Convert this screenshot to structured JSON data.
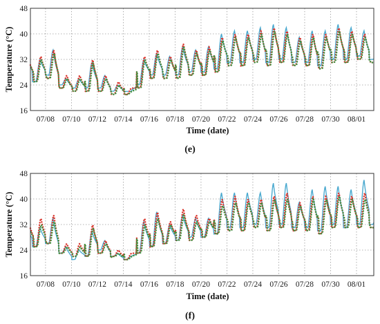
{
  "chart_data": [
    {
      "type": "line",
      "panel_label": "(e)",
      "xlabel": "Time (date)",
      "ylabel": "Temperature (°C)",
      "ylim": [
        16,
        48
      ],
      "yticks": [
        16,
        24,
        32,
        40,
        48
      ],
      "xlim": [
        "07/06 20:00",
        "08/02 08:00"
      ],
      "xticks": [
        "07/08",
        "07/10",
        "07/12",
        "07/14",
        "07/16",
        "07/18",
        "07/20",
        "07/22",
        "07/24",
        "07/26",
        "07/28",
        "07/30",
        "08/01"
      ],
      "grid": true,
      "x_daily": [
        "07/07",
        "07/08",
        "07/09",
        "07/10",
        "07/11",
        "07/12",
        "07/13",
        "07/14",
        "07/15",
        "07/16",
        "07/17",
        "07/18",
        "07/19",
        "07/20",
        "07/21",
        "07/22",
        "07/23",
        "07/24",
        "07/25",
        "07/26",
        "07/27",
        "07/28",
        "07/29",
        "07/30",
        "07/31",
        "08/01",
        "08/02"
      ],
      "series": [
        {
          "color": "#4aa9cf",
          "style": "solid",
          "daily_max": [
            32,
            35,
            26,
            26,
            31,
            27,
            24,
            22,
            32,
            34,
            33,
            36,
            35,
            36,
            40,
            41,
            41,
            42,
            43,
            42,
            39,
            41,
            41,
            43,
            42,
            41,
            33
          ],
          "daily_min": [
            25,
            27,
            24,
            23,
            23,
            23,
            22,
            22,
            24,
            27,
            27,
            27,
            28,
            28,
            29,
            31,
            31,
            32,
            31,
            32,
            31,
            31,
            30,
            32,
            32,
            33,
            32
          ]
        },
        {
          "color": "#d9342b",
          "style": "dotted",
          "daily_max": [
            33,
            35,
            27,
            27,
            32,
            27,
            25,
            23,
            33,
            35,
            33,
            37,
            35,
            36,
            39,
            40,
            40,
            41,
            42,
            41,
            39,
            40,
            40,
            42,
            41,
            40,
            33
          ],
          "daily_min": [
            25,
            26,
            23,
            22,
            22,
            22,
            21,
            21,
            23,
            26,
            26,
            26,
            27,
            27,
            28,
            30,
            30,
            31,
            30,
            31,
            30,
            30,
            29,
            31,
            31,
            32,
            31
          ]
        },
        {
          "color": "#3f8f3f",
          "style": "dotted",
          "daily_max": [
            32,
            34,
            26,
            26,
            31,
            26,
            24,
            22,
            32,
            34,
            32,
            36,
            34,
            35,
            38,
            39,
            39,
            40,
            41,
            40,
            38,
            39,
            39,
            41,
            40,
            39,
            32
          ],
          "daily_min": [
            25,
            26,
            23,
            22,
            22,
            22,
            21,
            21,
            23,
            26,
            26,
            26,
            27,
            27,
            28,
            30,
            30,
            31,
            30,
            31,
            30,
            30,
            29,
            31,
            31,
            32,
            31
          ]
        }
      ]
    },
    {
      "type": "line",
      "panel_label": "(f)",
      "xlabel": "Time (date)",
      "ylabel": "Temperature (°C)",
      "ylim": [
        16,
        48
      ],
      "yticks": [
        16,
        24,
        32,
        40,
        48
      ],
      "xlim": [
        "07/06 20:00",
        "08/02 08:00"
      ],
      "xticks": [
        "07/08",
        "07/10",
        "07/12",
        "07/14",
        "07/16",
        "07/18",
        "07/20",
        "07/22",
        "07/24",
        "07/26",
        "07/28",
        "07/30",
        "08/01"
      ],
      "grid": true,
      "x_daily": [
        "07/07",
        "07/08",
        "07/09",
        "07/10",
        "07/11",
        "07/12",
        "07/13",
        "07/14",
        "07/15",
        "07/16",
        "07/17",
        "07/18",
        "07/19",
        "07/20",
        "07/21",
        "07/22",
        "07/23",
        "07/24",
        "07/25",
        "07/26",
        "07/27",
        "07/28",
        "07/29",
        "07/30",
        "07/31",
        "08/01",
        "08/02"
      ],
      "series": [
        {
          "color": "#4aa9cf",
          "style": "solid",
          "daily_max": [
            31,
            34,
            25,
            24,
            30,
            27,
            23,
            22,
            33,
            36,
            32,
            35,
            34,
            34,
            42,
            42,
            42,
            42,
            45,
            45,
            39,
            43,
            44,
            44,
            43,
            46,
            35
          ],
          "daily_min": [
            25,
            26,
            23,
            21,
            22,
            24,
            22,
            21,
            23,
            25,
            26,
            27,
            28,
            28,
            29,
            31,
            31,
            32,
            31,
            32,
            31,
            31,
            30,
            32,
            31,
            32,
            32
          ]
        },
        {
          "color": "#d9342b",
          "style": "dotted",
          "daily_max": [
            34,
            35,
            26,
            26,
            32,
            27,
            24,
            23,
            34,
            36,
            33,
            37,
            35,
            34,
            40,
            41,
            40,
            40,
            41,
            42,
            39,
            41,
            41,
            42,
            41,
            42,
            34
          ],
          "daily_min": [
            25,
            26,
            23,
            22,
            22,
            23,
            22,
            21,
            23,
            25,
            26,
            27,
            27,
            28,
            29,
            30,
            30,
            31,
            30,
            31,
            30,
            30,
            29,
            31,
            31,
            31,
            31
          ]
        },
        {
          "color": "#3f8f3f",
          "style": "dotted",
          "daily_max": [
            32,
            33,
            25,
            25,
            31,
            26,
            23,
            22,
            32,
            34,
            32,
            35,
            33,
            33,
            38,
            39,
            39,
            39,
            40,
            40,
            38,
            40,
            40,
            41,
            40,
            40,
            33
          ],
          "daily_min": [
            25,
            26,
            23,
            22,
            22,
            23,
            22,
            21,
            23,
            25,
            26,
            27,
            27,
            28,
            29,
            30,
            30,
            31,
            30,
            31,
            30,
            30,
            29,
            31,
            31,
            31,
            31
          ]
        }
      ]
    }
  ]
}
